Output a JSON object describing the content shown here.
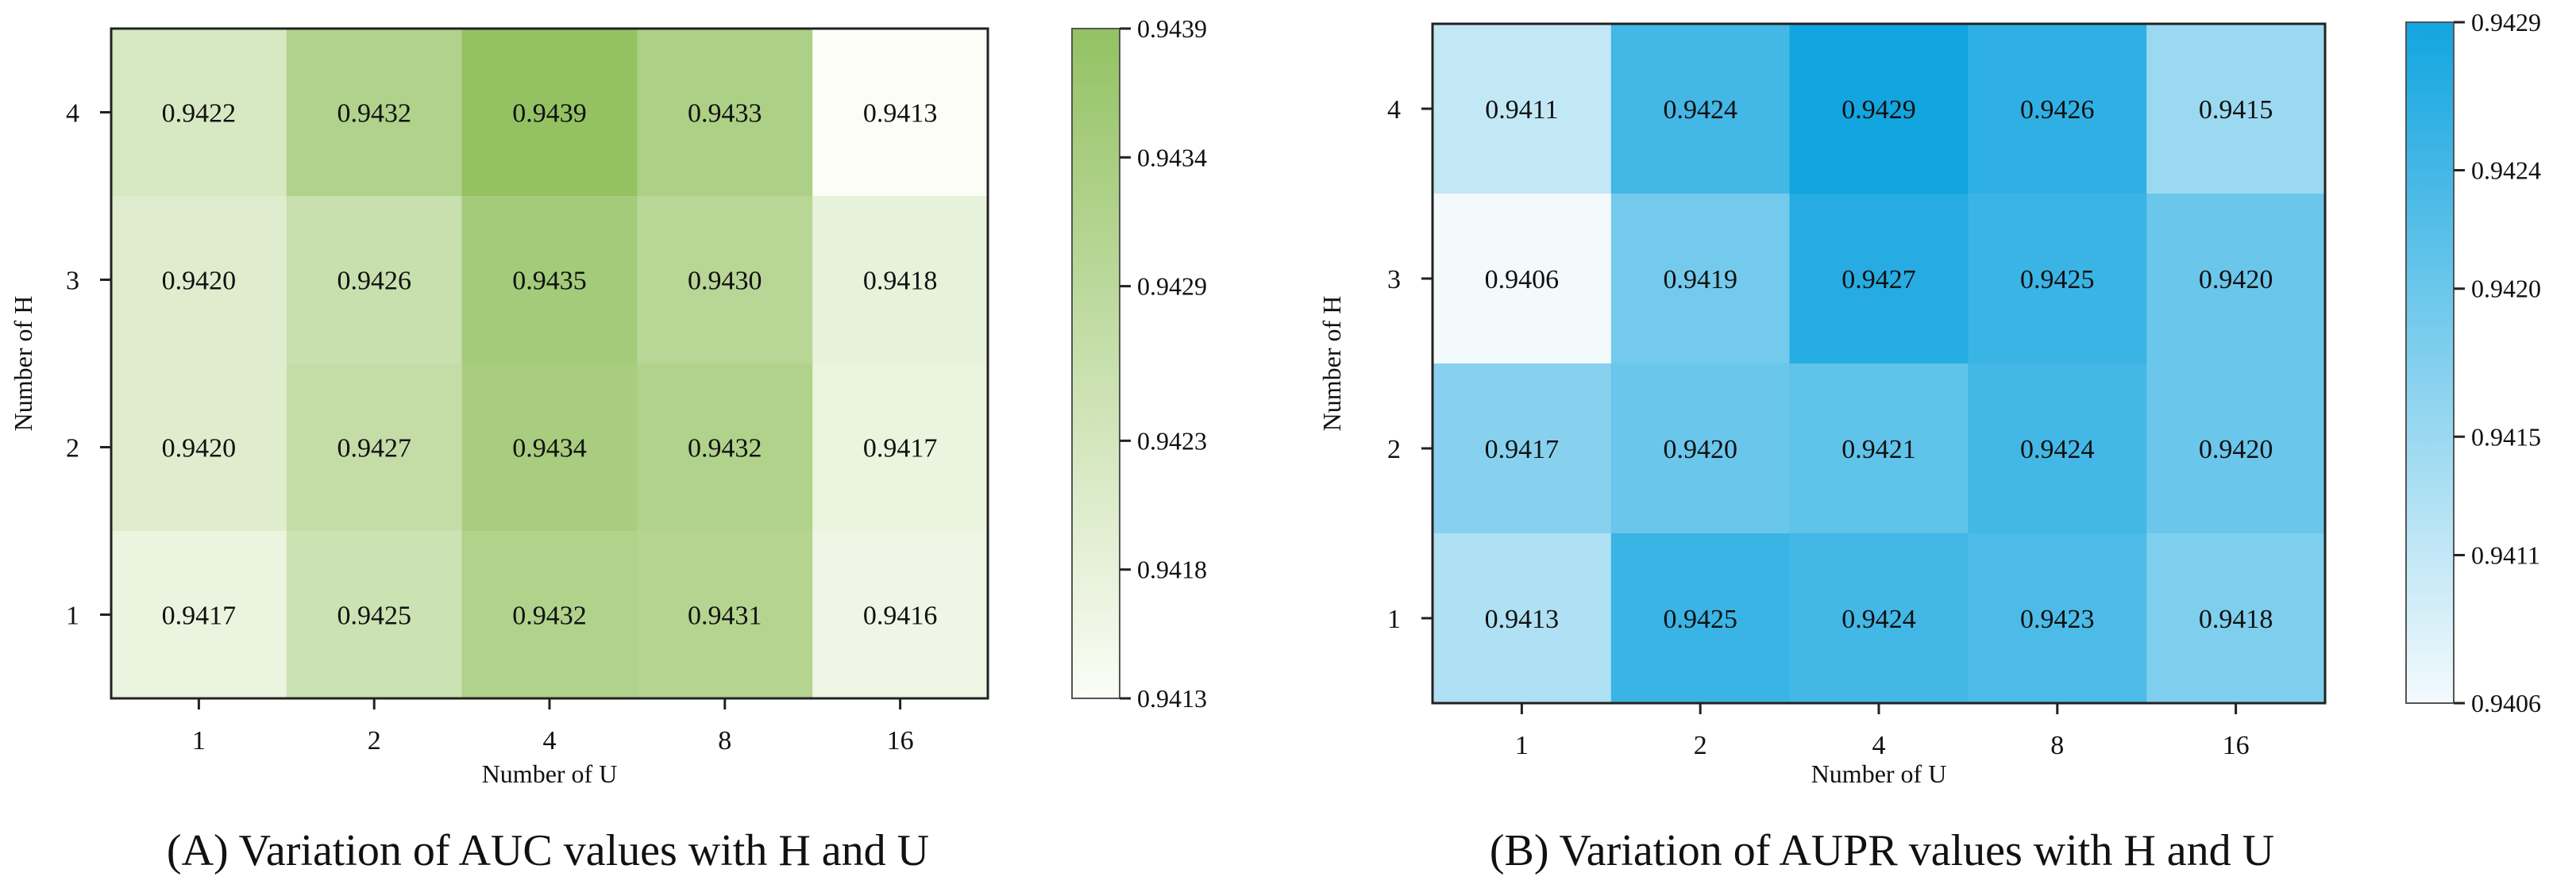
{
  "chart_data": [
    {
      "type": "heatmap",
      "caption": "(A) Variation of AUC values with H and U",
      "xlabel": "Number of U",
      "ylabel": "Number of H",
      "x_categories": [
        "1",
        "2",
        "4",
        "8",
        "16"
      ],
      "y_categories": [
        "4",
        "3",
        "2",
        "1"
      ],
      "values": [
        [
          0.9422,
          0.9432,
          0.9439,
          0.9433,
          0.9413
        ],
        [
          0.942,
          0.9426,
          0.9435,
          0.943,
          0.9418
        ],
        [
          0.942,
          0.9427,
          0.9434,
          0.9432,
          0.9417
        ],
        [
          0.9417,
          0.9425,
          0.9432,
          0.9431,
          0.9416
        ]
      ],
      "value_labels": [
        [
          "0.9422",
          "0.9432",
          "0.9439",
          "0.9433",
          "0.9413"
        ],
        [
          "0.9420",
          "0.9426",
          "0.9435",
          "0.9430",
          "0.9418"
        ],
        [
          "0.9420",
          "0.9427",
          "0.9434",
          "0.9432",
          "0.9417"
        ],
        [
          "0.9417",
          "0.9425",
          "0.9432",
          "0.9431",
          "0.9416"
        ]
      ],
      "colorbar": {
        "min": 0.9413,
        "max": 0.9439,
        "ticks": [
          0.9439,
          0.9434,
          0.9429,
          0.9423,
          0.9418,
          0.9413
        ],
        "tick_labels": [
          "0.9439",
          "0.9434",
          "0.9429",
          "0.9423",
          "0.9418",
          "0.9413"
        ],
        "color_low": "#fbfdf6",
        "color_high": "#94c263"
      }
    },
    {
      "type": "heatmap",
      "caption": "(B) Variation of AUPR values with H and U",
      "xlabel": "Number of U",
      "ylabel": "Number of H",
      "x_categories": [
        "1",
        "2",
        "4",
        "8",
        "16"
      ],
      "y_categories": [
        "4",
        "3",
        "2",
        "1"
      ],
      "values": [
        [
          0.9411,
          0.9424,
          0.9429,
          0.9426,
          0.9415
        ],
        [
          0.9406,
          0.9419,
          0.9427,
          0.9425,
          0.942
        ],
        [
          0.9417,
          0.942,
          0.9421,
          0.9424,
          0.942
        ],
        [
          0.9413,
          0.9425,
          0.9424,
          0.9423,
          0.9418
        ]
      ],
      "value_labels": [
        [
          "0.9411",
          "0.9424",
          "0.9429",
          "0.9426",
          "0.9415"
        ],
        [
          "0.9406",
          "0.9419",
          "0.9427",
          "0.9425",
          "0.9420"
        ],
        [
          "0.9417",
          "0.9420",
          "0.9421",
          "0.9424",
          "0.9420"
        ],
        [
          "0.9413",
          "0.9425",
          "0.9424",
          "0.9423",
          "0.9418"
        ]
      ],
      "colorbar": {
        "min": 0.9406,
        "max": 0.9429,
        "ticks": [
          0.9429,
          0.9424,
          0.942,
          0.9415,
          0.9411,
          0.9406
        ],
        "tick_labels": [
          "0.9429",
          "0.9424",
          "0.9420",
          "0.9415",
          "0.9411",
          "0.9406"
        ],
        "color_low": "#f3fafc",
        "color_high": "#12a5e0"
      }
    }
  ]
}
